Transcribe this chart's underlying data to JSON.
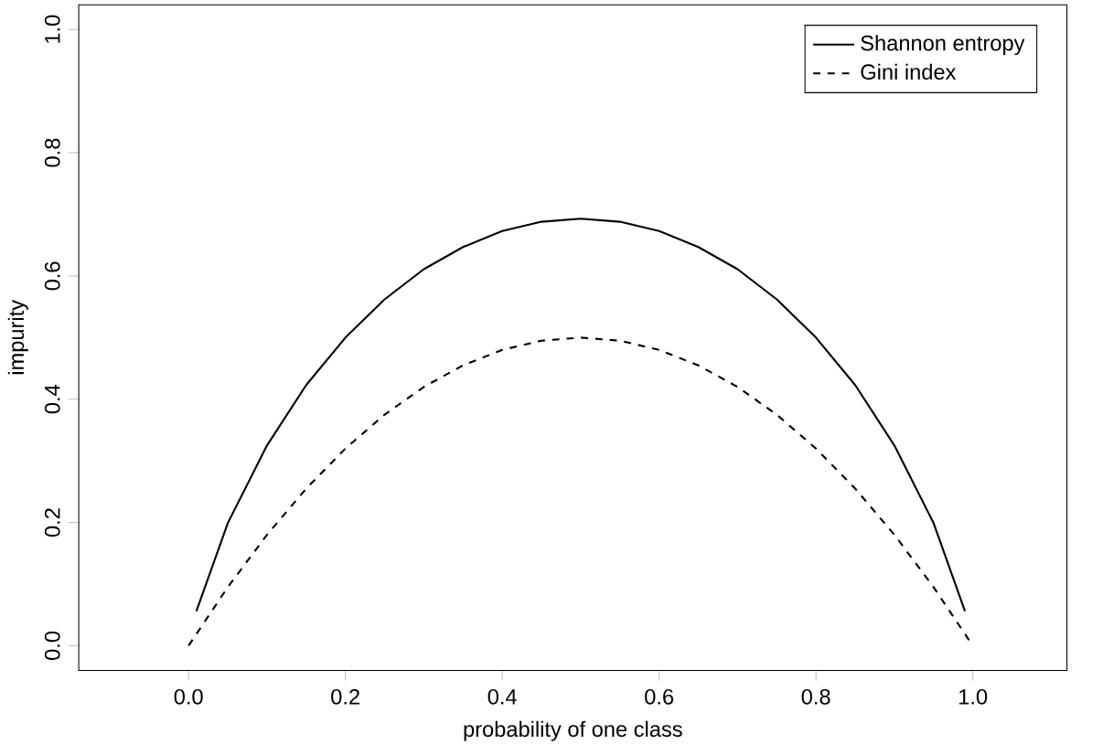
{
  "chart_data": {
    "type": "line",
    "xlabel": "probability of one class",
    "ylabel": "impurity",
    "xlim": [
      -0.14,
      1.12
    ],
    "ylim": [
      -0.04,
      1.04
    ],
    "xticks": [
      {
        "value": 0,
        "label": "0.0"
      },
      {
        "value": 0.2,
        "label": "0.2"
      },
      {
        "value": 0.4,
        "label": "0.4"
      },
      {
        "value": 0.6,
        "label": "0.6"
      },
      {
        "value": 0.8,
        "label": "0.8"
      },
      {
        "value": 1,
        "label": "1.0"
      }
    ],
    "yticks": [
      {
        "value": 0,
        "label": "0.0"
      },
      {
        "value": 0.2,
        "label": "0.2"
      },
      {
        "value": 0.4,
        "label": "0.4"
      },
      {
        "value": 0.6,
        "label": "0.6"
      },
      {
        "value": 0.8,
        "label": "0.8"
      },
      {
        "value": 1,
        "label": "1.0"
      }
    ],
    "legend": "top right",
    "grid": false,
    "marker": "none",
    "series": [
      {
        "name": "Shannon entropy",
        "color": "#000000",
        "line_style": "solid",
        "x": [
          0.01,
          0.05,
          0.1,
          0.15,
          0.2,
          0.25,
          0.3,
          0.35,
          0.4,
          0.45,
          0.5,
          0.55,
          0.6,
          0.65,
          0.7,
          0.75,
          0.8,
          0.85,
          0.9,
          0.95,
          0.99
        ],
        "values": [
          0.056,
          0.199,
          0.325,
          0.423,
          0.5,
          0.562,
          0.611,
          0.647,
          0.673,
          0.688,
          0.693,
          0.688,
          0.673,
          0.647,
          0.611,
          0.562,
          0.5,
          0.423,
          0.325,
          0.199,
          0.056
        ]
      },
      {
        "name": "Gini index",
        "color": "#000000",
        "line_style": "dashed",
        "x": [
          0,
          0.05,
          0.1,
          0.15,
          0.2,
          0.25,
          0.3,
          0.35,
          0.4,
          0.45,
          0.5,
          0.55,
          0.6,
          0.65,
          0.7,
          0.75,
          0.8,
          0.85,
          0.9,
          0.95,
          1
        ],
        "values": [
          0,
          0.095,
          0.18,
          0.255,
          0.32,
          0.375,
          0.42,
          0.455,
          0.48,
          0.495,
          0.5,
          0.495,
          0.48,
          0.455,
          0.42,
          0.375,
          0.32,
          0.255,
          0.18,
          0.095,
          0
        ]
      }
    ]
  }
}
